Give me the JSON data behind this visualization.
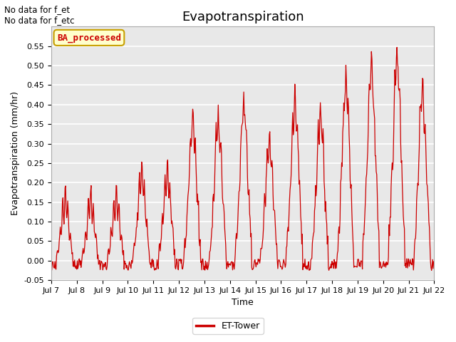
{
  "title": "Evapotranspiration",
  "ylabel": "Evapotranspiration (mm/hr)",
  "xlabel": "Time",
  "text_no_data": [
    "No data for f_et",
    "No data for f_etc"
  ],
  "legend_label": "ET-Tower",
  "legend_box_label": "BA_processed",
  "ylim": [
    -0.05,
    0.6
  ],
  "yticks": [
    -0.05,
    0.0,
    0.05,
    0.1,
    0.15,
    0.2,
    0.25,
    0.3,
    0.35,
    0.4,
    0.45,
    0.5,
    0.55
  ],
  "xtick_labels": [
    "Jul 7",
    "Jul 8",
    "Jul 9",
    "Jul 10",
    "Jul 11",
    "Jul 12",
    "Jul 13",
    "Jul 14",
    "Jul 15",
    "Jul 16",
    "Jul 17",
    "Jul 18",
    "Jul 19",
    "Jul 20",
    "Jul 21",
    "Jul 22"
  ],
  "line_color": "#cc0000",
  "bg_color": "#e8e8e8",
  "fig_bg_color": "#ffffff",
  "grid_color": "#ffffff",
  "title_fontsize": 13,
  "axis_fontsize": 9,
  "tick_fontsize": 8
}
